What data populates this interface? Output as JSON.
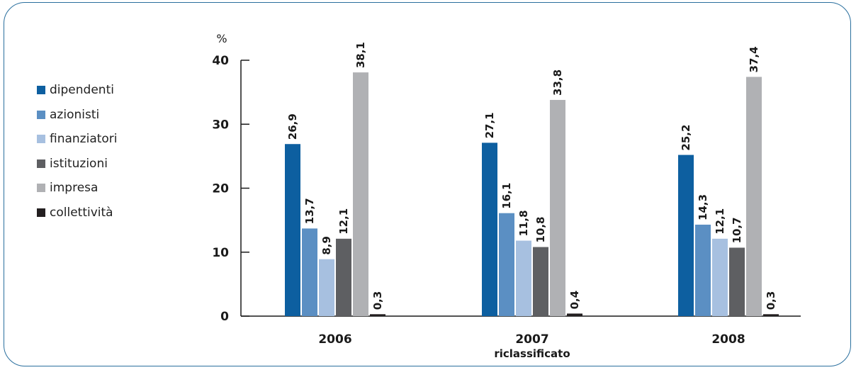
{
  "colors": {
    "frame": "#2a6f9e",
    "axis": "#1a1a1a"
  },
  "legend": {
    "items": [
      {
        "label": "dipendenti",
        "color": "#0d5fa0"
      },
      {
        "label": "azionisti",
        "color": "#5b8fc3"
      },
      {
        "label": "finanziatori",
        "color": "#a7c0e0"
      },
      {
        "label": "istituzioni",
        "color": "#5e5f62"
      },
      {
        "label": "impresa",
        "color": "#b0b1b4"
      },
      {
        "label": "collettività",
        "color": "#231f20"
      }
    ]
  },
  "chart_data": {
    "type": "bar",
    "categories": [
      "2006",
      "2007",
      "2008"
    ],
    "category_sublabels": [
      "",
      "riclassificato",
      ""
    ],
    "series": [
      {
        "name": "dipendenti",
        "values": [
          26.9,
          27.1,
          25.2
        ],
        "labels": [
          "26,9",
          "27,1",
          "25,2"
        ],
        "color": "#0d5fa0"
      },
      {
        "name": "azionisti",
        "values": [
          13.7,
          16.1,
          14.3
        ],
        "labels": [
          "13,7",
          "16,1",
          "14,3"
        ],
        "color": "#5b8fc3"
      },
      {
        "name": "finanziatori",
        "values": [
          8.9,
          11.8,
          12.1
        ],
        "labels": [
          "8,9",
          "11,8",
          "12,1"
        ],
        "color": "#a7c0e0"
      },
      {
        "name": "istituzioni",
        "values": [
          12.1,
          10.8,
          10.7
        ],
        "labels": [
          "12,1",
          "10,8",
          "10,7"
        ],
        "color": "#5e5f62"
      },
      {
        "name": "impresa",
        "values": [
          38.1,
          33.8,
          37.4
        ],
        "labels": [
          "38,1",
          "33,8",
          "37,4"
        ],
        "color": "#b0b1b4"
      },
      {
        "name": "collettività",
        "values": [
          0.3,
          0.4,
          0.3
        ],
        "labels": [
          "0,3",
          "0,4",
          "0,3"
        ],
        "color": "#231f20"
      }
    ],
    "ylabel": "%",
    "ylim": [
      0,
      40
    ],
    "yticks": [
      0,
      10,
      20,
      30,
      40
    ],
    "grid": false,
    "legend_position": "left"
  }
}
